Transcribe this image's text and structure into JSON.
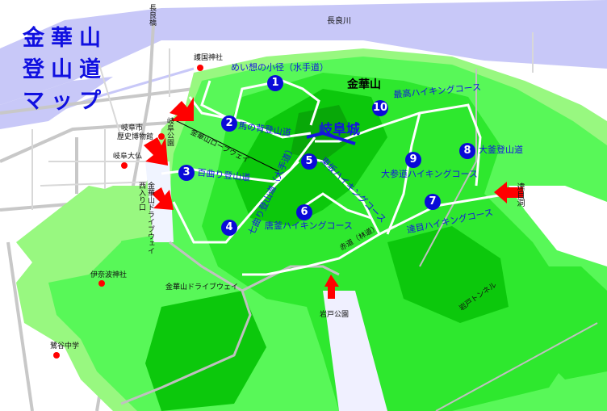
{
  "title": [
    "金華山",
    "登山道",
    "マップ"
  ],
  "colors": {
    "river": "#c8c8f8",
    "road": "#c8c8c8",
    "green_light": "#98f880",
    "green": "#58f858",
    "green_mid": "#2ee82e",
    "green_dark": "#0cc80c",
    "trail": "#ffffff",
    "marker": "#0a0ad8",
    "arrow": "#ff0000",
    "label_blue": "#1414e0"
  },
  "peak": "金華山",
  "castle": "岐阜城",
  "places": {
    "nagara_bridge": "長良橋",
    "nagara_river": "長良川",
    "gokoku": "護国神社",
    "museum_1": "岐阜市",
    "museum_2": "歴史博物館",
    "daibutsu": "岐阜大仏",
    "gifu_park": "岐阜公園",
    "ropeway": "金華山ロープウェイ",
    "drive_west_1": "金華山ドライブウェイ",
    "drive_west_2": "西入り口",
    "inaba": "伊奈波神社",
    "sagiyama": "鷺谷中学",
    "driveway": "金華山ドライブウェイ",
    "iwato_park": "岩戸公園",
    "iwato_tunnel": "岩戸トンネル",
    "datsumokubora": "達目洞",
    "akamichi": "赤道（林道）"
  },
  "trails": [
    {
      "num": "1",
      "name": "めい想の小径（水手道）"
    },
    {
      "num": "2",
      "name": "馬の背登山道"
    },
    {
      "num": "3",
      "name": "百曲り登山道"
    },
    {
      "num": "4",
      "name": "七曲り登山道（大手道）"
    },
    {
      "num": "5",
      "name": "東坂ハイキングコース"
    },
    {
      "num": "6",
      "name": "唐釜ハイキングコース"
    },
    {
      "num": "7",
      "name": "達目ハイキングコース"
    },
    {
      "num": "8",
      "name": "大釜登山道"
    },
    {
      "num": "9",
      "name": "大参道ハイキングコース"
    },
    {
      "num": "10",
      "name": "最高ハイキングコース"
    }
  ]
}
